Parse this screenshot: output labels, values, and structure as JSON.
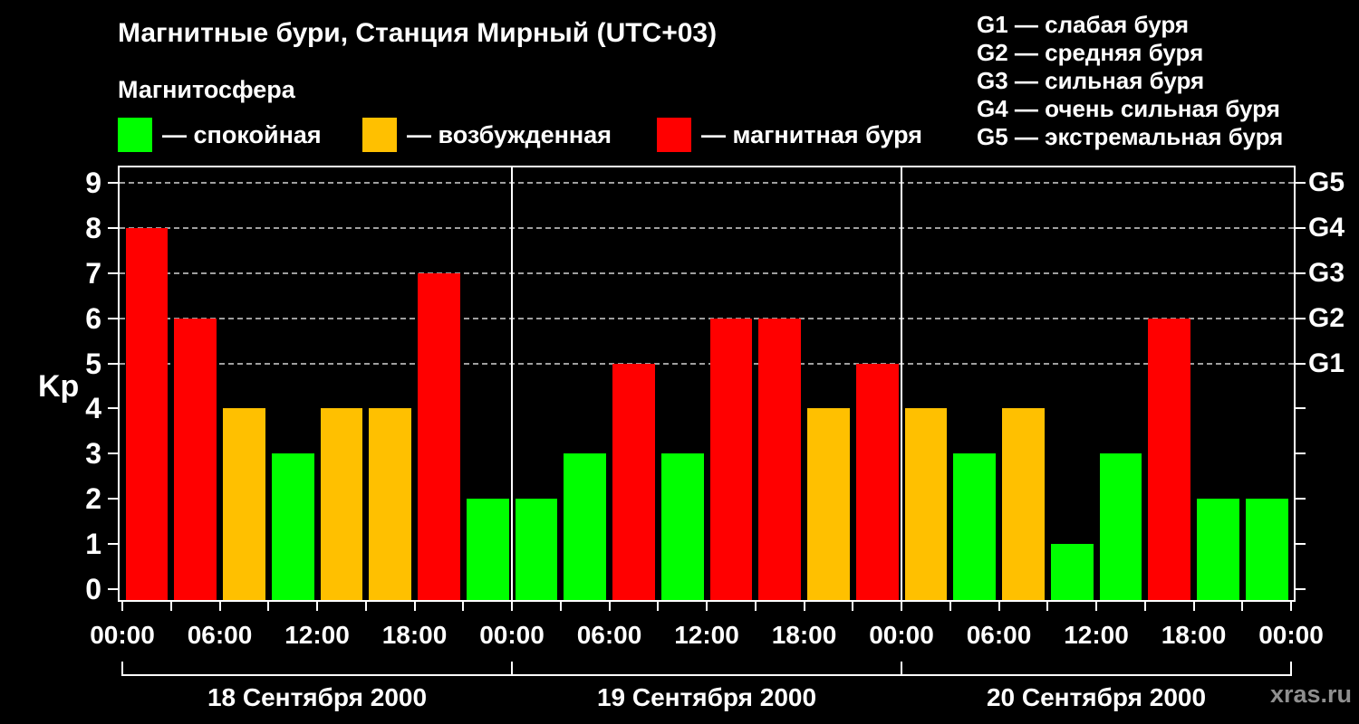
{
  "header": {
    "title": "Магнитные бури, Станция Мирный (UTC+03)",
    "legend_title": "Магнитосфера",
    "legend": [
      {
        "key": "quiet",
        "color": "#00ff00",
        "label": "— спокойная"
      },
      {
        "key": "excited",
        "color": "#ffc000",
        "label": "— возбужденная"
      },
      {
        "key": "storm",
        "color": "#ff0000",
        "label": "— магнитная буря"
      }
    ],
    "g_legend": [
      "G1 — слабая буря",
      "G2 — средняя буря",
      "G3 — сильная буря",
      "G4 — очень сильная буря",
      "G5 — экстремальная буря"
    ]
  },
  "watermark": "xras.ru",
  "chart_data": {
    "type": "bar",
    "title": "Магнитные бури, Станция Мирный (UTC+03)",
    "ylabel": "Kp",
    "ylim": [
      0,
      9
    ],
    "yticks": [
      0,
      1,
      2,
      3,
      4,
      5,
      6,
      7,
      8,
      9
    ],
    "gridlines_at": [
      5,
      6,
      7,
      8,
      9
    ],
    "grid": "dashed horizontal at storm levels only",
    "legend_position": "top",
    "right_axis_labels": [
      {
        "kp": 5,
        "label": "G1"
      },
      {
        "kp": 6,
        "label": "G2"
      },
      {
        "kp": 7,
        "label": "G3"
      },
      {
        "kp": 8,
        "label": "G4"
      },
      {
        "kp": 9,
        "label": "G5"
      }
    ],
    "bar_interval_hours": 3,
    "x_time_labels": [
      "00:00",
      "06:00",
      "12:00",
      "18:00",
      "00:00",
      "06:00",
      "12:00",
      "18:00",
      "00:00",
      "06:00",
      "12:00",
      "18:00",
      "00:00"
    ],
    "days": [
      {
        "date": "18 Сентября 2000",
        "values": [
          8,
          6,
          4,
          3,
          4,
          4,
          7,
          2
        ]
      },
      {
        "date": "19 Сентября 2000",
        "values": [
          2,
          3,
          5,
          3,
          6,
          6,
          4,
          5
        ]
      },
      {
        "date": "20 Сентября 2000",
        "values": [
          4,
          3,
          4,
          1,
          3,
          6,
          2,
          2
        ]
      }
    ],
    "color_rules": {
      "quiet_max_kp": 3,
      "excited_max_kp": 4,
      "storm_min_kp": 5
    },
    "colors": {
      "quiet": "#00ff00",
      "excited": "#ffc000",
      "storm": "#ff0000"
    }
  }
}
